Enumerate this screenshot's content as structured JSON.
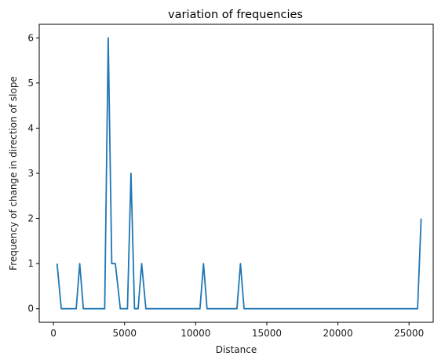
{
  "chart_data": {
    "type": "line",
    "title": "variation of frequencies",
    "xlabel": "Distance",
    "ylabel": "Frequency of change in direction of slope",
    "xlim": [
      -1000,
      26700
    ],
    "ylim": [
      -0.3,
      6.3
    ],
    "xticks": [
      0,
      5000,
      10000,
      15000,
      20000,
      25000
    ],
    "yticks": [
      0,
      1,
      2,
      3,
      4,
      5,
      6
    ],
    "grid": false,
    "line_color": "#1f77b4",
    "series": [
      {
        "x": [
          250,
          550,
          1600,
          1850,
          2100,
          3600,
          3850,
          4100,
          4350,
          4700,
          5200,
          5450,
          5700,
          5950,
          6200,
          6500,
          10300,
          10550,
          10800,
          12900,
          13150,
          13400,
          25600,
          25850
        ],
        "values": [
          1,
          0,
          0,
          1,
          0,
          0,
          6,
          1,
          1,
          0,
          0,
          3,
          0,
          0,
          1,
          0,
          0,
          1,
          0,
          0,
          1,
          0,
          0,
          2
        ]
      }
    ]
  }
}
